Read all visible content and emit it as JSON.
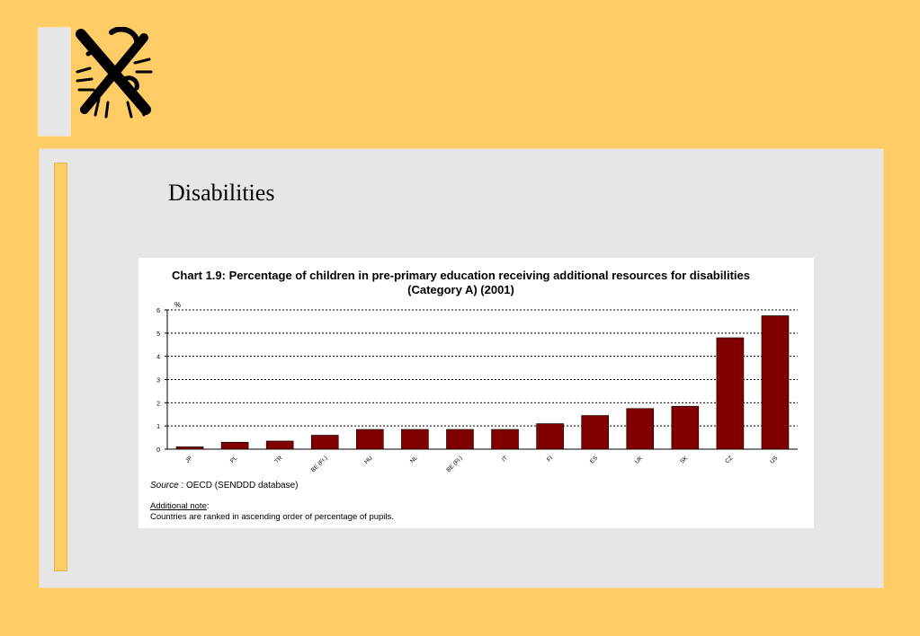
{
  "slide": {
    "title": "Disabilities"
  },
  "colors": {
    "background": "#FFCC66",
    "panel": "#E6E6E6",
    "bar": "#800000"
  },
  "logo": {
    "icon": "heraldic-lion-logo-icon"
  },
  "chart_data": {
    "type": "bar",
    "title_line1": "Chart 1.9: Percentage of children in pre-primary education receiving additional resources for disabilities",
    "title_line2": "(Category A) (2001)",
    "ylabel": "%",
    "ylim": [
      0,
      6
    ],
    "yticks": [
      "0",
      "1",
      "2",
      "3",
      "4",
      "5",
      "6"
    ],
    "grid": true,
    "categories": [
      "JP",
      "PL",
      "TR",
      "BE (Fr.)",
      "HU",
      "NL",
      "BE (Fl.)",
      "IT",
      "FI",
      "ES",
      "UK",
      "SK",
      "CZ",
      "US"
    ],
    "values": [
      0.1,
      0.3,
      0.35,
      0.6,
      0.85,
      0.85,
      0.85,
      0.85,
      1.1,
      1.45,
      1.75,
      1.85,
      4.8,
      5.75
    ],
    "source_label": "Source",
    "source_text": " : OECD (SENDDD database)",
    "note_label": "Additional note",
    "note_text": "Countries are ranked in ascending order of percentage of pupils."
  }
}
